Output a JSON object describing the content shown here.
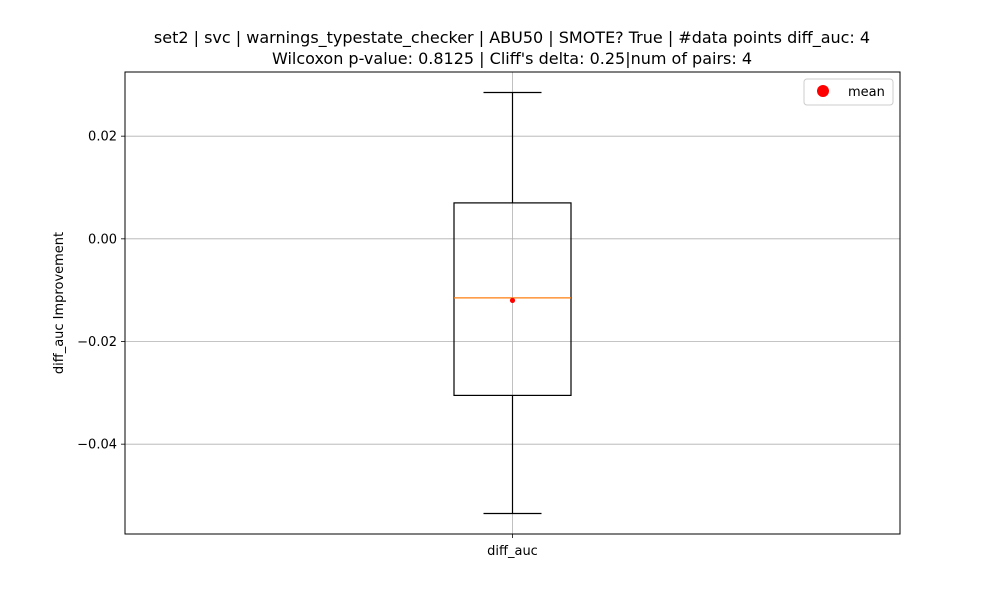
{
  "chart_data": {
    "type": "box",
    "title_line1": "set2 | svc | warnings_typestate_checker | ABU50 | SMOTE? True | #data points diff_auc: 4",
    "title_line2": "Wilcoxon p-value: 0.8125 | Cliff's delta: 0.25|num of pairs: 4",
    "ylabel": "diff_auc Improvement",
    "xlabel": "",
    "categories": [
      "diff_auc"
    ],
    "ylim": [
      -0.0575,
      0.0325
    ],
    "yticks": [
      -0.04,
      -0.02,
      0.0,
      0.02
    ],
    "ytick_labels": [
      "−0.04",
      "−0.02",
      "0.00",
      "0.02"
    ],
    "grid": true,
    "legend": {
      "placement": "top-right",
      "entries": [
        {
          "label": "mean",
          "color": "#ff0000",
          "marker": "circle"
        }
      ]
    },
    "boxes": [
      {
        "category": "diff_auc",
        "whisker_low": -0.0535,
        "q1": -0.0305,
        "median": -0.0115,
        "q3": 0.007,
        "whisker_high": 0.0285,
        "mean": -0.012
      }
    ],
    "colors": {
      "median": "#ff7f0e",
      "mean": "#ff0000",
      "box": "#000000",
      "grid": "#b0b0b0"
    }
  }
}
